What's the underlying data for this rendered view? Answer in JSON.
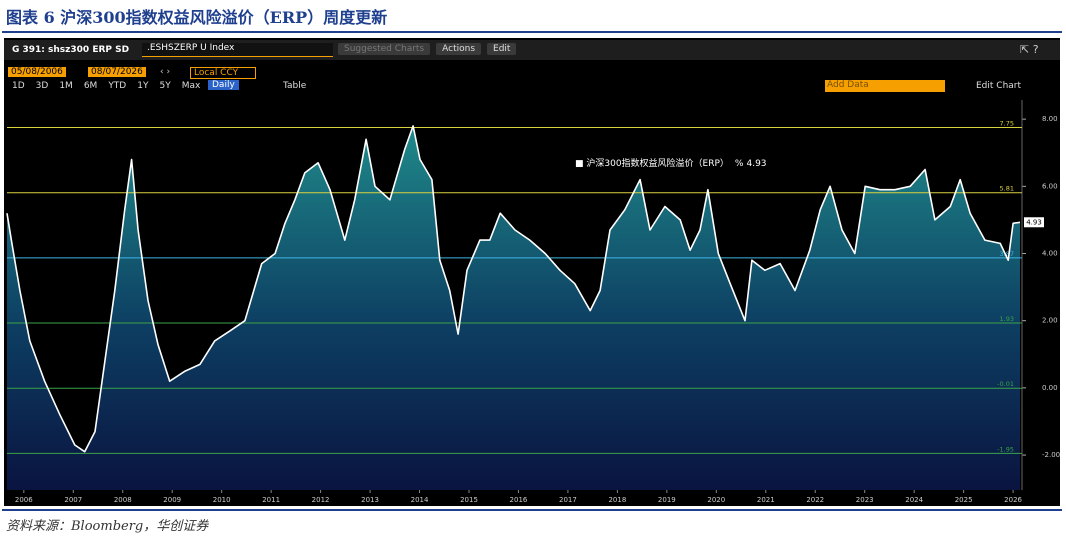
{
  "title": "图表 6 沪深300指数权益风险溢价（ERP）周度更新",
  "source": "资料来源：Bloomberg，华创证券",
  "toolbar": {
    "ticker": "G 391: shsz300 ERP SD",
    "security": ".ESHSZERP U Index",
    "menus": [
      "Suggested Charts",
      "Actions",
      "Edit"
    ],
    "start_date": "05/08/2006",
    "end_date": "08/07/2026",
    "currency": "Local CCY",
    "periods": [
      "1D",
      "3D",
      "1M",
      "6M",
      "YTD",
      "1Y",
      "5Y",
      "Max"
    ],
    "frequency": "Daily",
    "table": "Table",
    "add_data": "Add Data",
    "edit_chart": "Edit Chart"
  },
  "chart_data": {
    "type": "area",
    "x": [
      2006.16,
      2006.26,
      2006.42,
      2006.62,
      2006.92,
      2007.23,
      2007.53,
      2007.73,
      2007.94,
      2008.14,
      2008.34,
      2008.54,
      2008.68,
      2008.81,
      2009.01,
      2009.21,
      2009.45,
      2009.76,
      2010.06,
      2010.36,
      2010.67,
      2010.97,
      2011.31,
      2011.58,
      2011.78,
      2011.98,
      2012.18,
      2012.45,
      2012.69,
      2012.99,
      2013.19,
      2013.42,
      2013.6,
      2013.9,
      2014.2,
      2014.37,
      2014.51,
      2014.75,
      2014.91,
      2015.11,
      2015.28,
      2015.46,
      2015.72,
      2015.92,
      2016.13,
      2016.43,
      2016.73,
      2017.04,
      2017.34,
      2017.64,
      2017.95,
      2018.15,
      2018.35,
      2018.65,
      2018.96,
      2019.16,
      2019.46,
      2019.77,
      2019.97,
      2020.17,
      2020.33,
      2020.54,
      2020.78,
      2021.08,
      2021.22,
      2021.48,
      2021.79,
      2022.09,
      2022.39,
      2022.6,
      2022.8,
      2023.04,
      2023.3,
      2023.51,
      2023.81,
      2024.11,
      2024.42,
      2024.72,
      2024.92,
      2025.23,
      2025.43,
      2025.63,
      2025.93,
      2026.24,
      2026.4,
      2026.5,
      2026.64
    ],
    "series": [
      {
        "name": "沪深300指数权益风险溢价（ERP）",
        "unit": "%",
        "color": "#ffffff",
        "values": [
          5.2,
          4.3,
          2.9,
          1.4,
          0.2,
          -0.8,
          -1.7,
          -1.9,
          -1.3,
          0.8,
          2.9,
          5.3,
          6.8,
          4.7,
          2.6,
          1.3,
          0.2,
          0.5,
          0.7,
          1.4,
          1.7,
          2.0,
          3.7,
          4.0,
          4.9,
          5.6,
          6.4,
          6.7,
          5.9,
          4.4,
          5.6,
          7.4,
          6.0,
          5.6,
          7.1,
          7.8,
          6.8,
          6.2,
          3.8,
          2.9,
          1.6,
          3.5,
          4.4,
          4.4,
          5.2,
          4.7,
          4.4,
          4.0,
          3.5,
          3.1,
          2.3,
          2.9,
          4.7,
          5.3,
          6.2,
          4.7,
          5.4,
          5.0,
          4.1,
          4.7,
          5.9,
          4.0,
          3.1,
          2.0,
          3.8,
          3.5,
          3.7,
          2.9,
          4.1,
          5.3,
          6.0,
          4.7,
          4.0,
          6.0,
          5.9,
          5.9,
          6.0,
          6.5,
          5.0,
          5.4,
          6.2,
          5.2,
          4.4,
          4.3,
          3.8,
          4.9,
          4.93
        ]
      }
    ],
    "reference_lines": [
      {
        "value": 7.75,
        "color": "#d9d23f"
      },
      {
        "value": 5.81,
        "color": "#d9d23f"
      },
      {
        "value": 3.87,
        "color": "#3cb6e3"
      },
      {
        "value": 1.93,
        "color": "#3aa34a"
      },
      {
        "value": -0.01,
        "color": "#3aa34a"
      },
      {
        "value": -1.95,
        "color": "#3aa34a"
      }
    ],
    "xlim": [
      2006.16,
      2026.68
    ],
    "xticks": [
      {
        "value": 2006.5,
        "label": "2006"
      },
      {
        "value": 2007.5,
        "label": "2007"
      },
      {
        "value": 2008.5,
        "label": "2008"
      },
      {
        "value": 2009.5,
        "label": "2009"
      },
      {
        "value": 2010.5,
        "label": "2010"
      },
      {
        "value": 2011.5,
        "label": "2011"
      },
      {
        "value": 2012.5,
        "label": "2012"
      },
      {
        "value": 2013.5,
        "label": "2013"
      },
      {
        "value": 2014.5,
        "label": "2014"
      },
      {
        "value": 2015.5,
        "label": "2015"
      },
      {
        "value": 2016.5,
        "label": "2016"
      },
      {
        "value": 2017.5,
        "label": "2017"
      },
      {
        "value": 2018.5,
        "label": "2018"
      },
      {
        "value": 2019.5,
        "label": "2019"
      },
      {
        "value": 2020.5,
        "label": "2020"
      },
      {
        "value": 2021.5,
        "label": "2021"
      },
      {
        "value": 2022.5,
        "label": "2022"
      },
      {
        "value": 2023.5,
        "label": "2023"
      },
      {
        "value": 2024.5,
        "label": "2024"
      },
      {
        "value": 2025.5,
        "label": "2025"
      },
      {
        "value": 2026.5,
        "label": "2026"
      }
    ],
    "ylim": [
      -3.04,
      8.57
    ],
    "yticks": [
      {
        "value": 8,
        "label": "8.00"
      },
      {
        "value": 6,
        "label": "6.00"
      },
      {
        "value": 4,
        "label": "4.00"
      },
      {
        "value": 2,
        "label": "2.00"
      },
      {
        "value": 0,
        "label": "0.00"
      },
      {
        "value": -2,
        "label": "-2.00"
      }
    ]
  }
}
